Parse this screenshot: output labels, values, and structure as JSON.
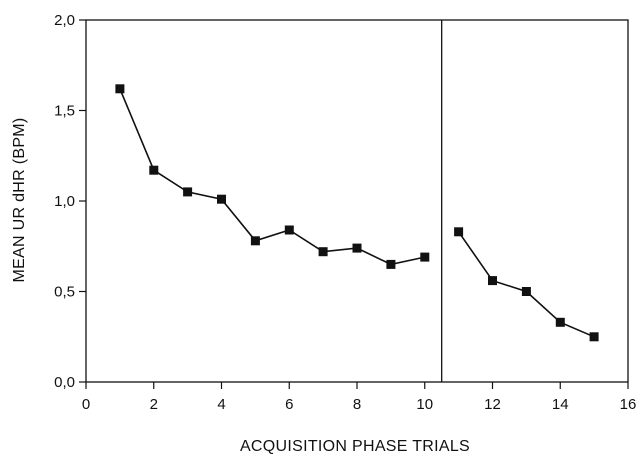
{
  "chart_data": {
    "type": "line",
    "title": "",
    "xlabel": "ACQUISITION PHASE TRIALS",
    "ylabel": "MEAN UR dHR (BPM)",
    "xlim": [
      0,
      16
    ],
    "ylim": [
      0,
      2
    ],
    "x_ticks": [
      0,
      2,
      4,
      6,
      8,
      10,
      12,
      14,
      16
    ],
    "x_tick_labels": [
      "0",
      "2",
      "4",
      "6",
      "8",
      "10",
      "12",
      "14",
      "16"
    ],
    "y_ticks": [
      0,
      0.5,
      1,
      1.5,
      2
    ],
    "y_tick_labels": [
      "0,0",
      "0,5",
      "1,0",
      "1,5",
      "2,0"
    ],
    "grid": false,
    "divider_x": 10.5,
    "segments": [
      {
        "x": [
          1,
          2,
          3,
          4,
          5,
          6,
          7,
          8,
          9,
          10
        ],
        "y": [
          1.62,
          1.17,
          1.05,
          1.01,
          0.78,
          0.84,
          0.72,
          0.74,
          0.65,
          0.69
        ]
      },
      {
        "x": [
          11,
          12,
          13,
          14,
          15
        ],
        "y": [
          0.83,
          0.56,
          0.5,
          0.33,
          0.25
        ]
      }
    ],
    "colors": {
      "line": "#111111",
      "marker": "#111111"
    }
  }
}
